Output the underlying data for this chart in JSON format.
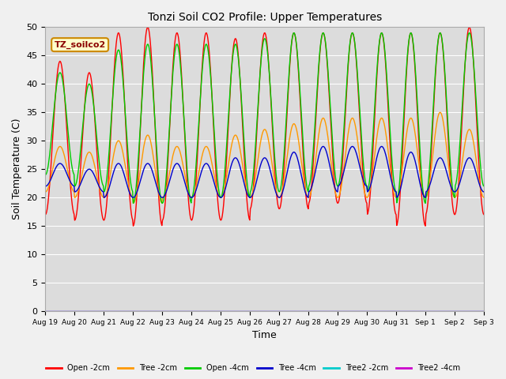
{
  "title": "Tonzi Soil CO2 Profile: Upper Temperatures",
  "xlabel": "Time",
  "ylabel": "Soil Temperature (C)",
  "ylim": [
    0,
    50
  ],
  "yticks": [
    0,
    5,
    10,
    15,
    20,
    25,
    30,
    35,
    40,
    45,
    50
  ],
  "n_days": 15,
  "fig_bg": "#f0f0f0",
  "plot_bg": "#dcdcdc",
  "series": [
    {
      "name": "Open -2cm",
      "color": "#ff0000"
    },
    {
      "name": "Tree -2cm",
      "color": "#ff9900"
    },
    {
      "name": "Open -4cm",
      "color": "#00cc00"
    },
    {
      "name": "Tree -4cm",
      "color": "#0000cc"
    },
    {
      "name": "Tree2 -2cm",
      "color": "#00cccc"
    },
    {
      "name": "Tree2 -4cm",
      "color": "#cc00cc"
    }
  ],
  "legend_label": "TZ_soilco2",
  "open2_max": [
    44,
    42,
    49,
    50,
    49,
    49,
    48,
    49,
    49,
    49,
    49,
    49,
    49,
    49,
    50
  ],
  "open2_min": [
    17,
    16,
    16,
    15,
    16,
    16,
    16,
    18,
    18,
    19,
    19,
    17,
    15,
    17,
    17
  ],
  "tree2_max": [
    29,
    28,
    30,
    31,
    29,
    29,
    31,
    32,
    33,
    34,
    34,
    34,
    34,
    35,
    32
  ],
  "tree2_min": [
    21,
    20,
    20,
    19,
    20,
    20,
    20,
    20,
    20,
    20,
    20,
    20,
    20,
    20,
    20
  ],
  "open4_max": [
    42,
    40,
    46,
    47,
    47,
    47,
    47,
    48,
    49,
    49,
    49,
    49,
    49,
    49,
    49
  ],
  "open4_min": [
    24,
    22,
    21,
    19,
    19,
    20,
    20,
    21,
    21,
    22,
    22,
    21,
    19,
    20,
    22
  ],
  "tree4_max": [
    26,
    25,
    26,
    26,
    26,
    26,
    27,
    27,
    28,
    29,
    29,
    29,
    28,
    27,
    27
  ],
  "tree4_min": [
    22,
    21,
    20,
    20,
    20,
    20,
    20,
    20,
    20,
    21,
    22,
    21,
    20,
    21,
    21
  ],
  "tick_labels": [
    "Aug 19",
    "Aug 20",
    "Aug 21",
    "Aug 22",
    "Aug 23",
    "Aug 24",
    "Aug 25",
    "Aug 26",
    "Aug 27",
    "Aug 28",
    "Aug 29",
    "Aug 30",
    "Aug 31",
    "Sep 1",
    "Sep 2",
    "Sep 3"
  ]
}
